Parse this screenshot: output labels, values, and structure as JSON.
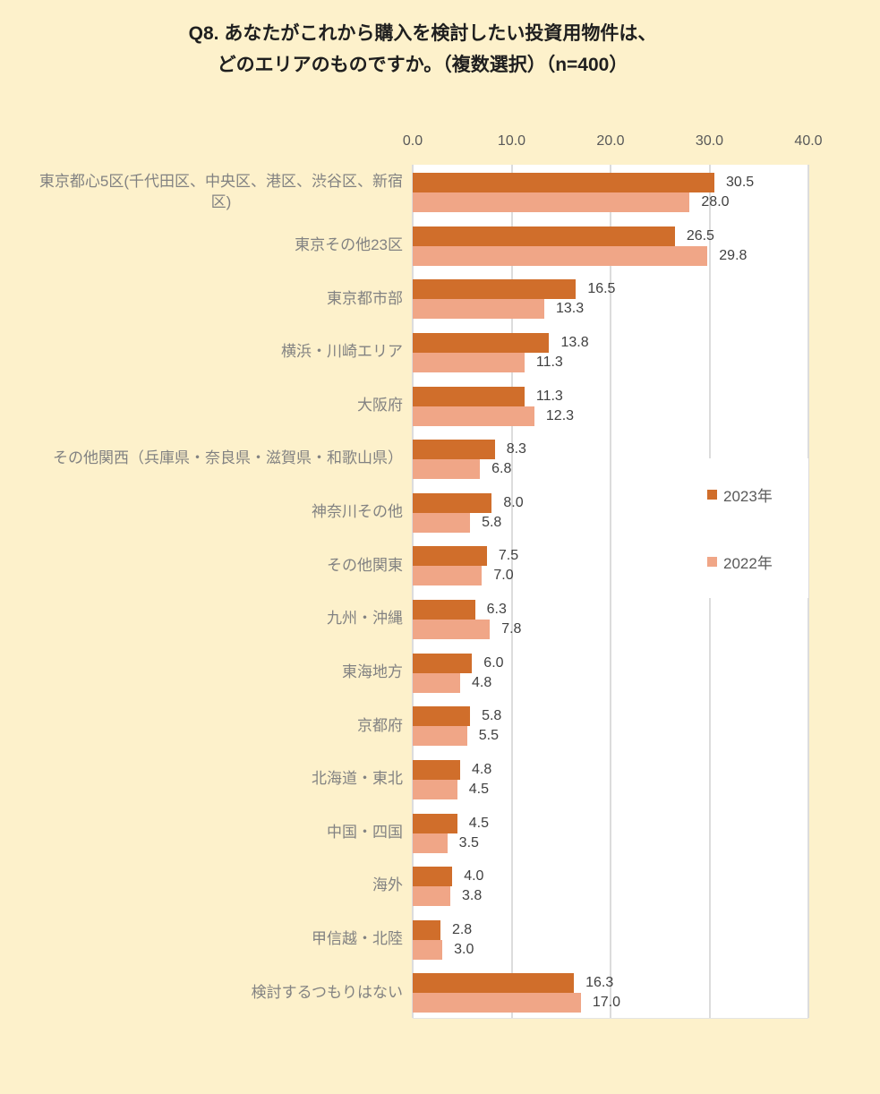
{
  "title": {
    "line1": "Q8. あなたがこれから購入を検討したい投資用物件は、",
    "line2": "どのエリアのものですか。（複数選択）（n=400）"
  },
  "legend": [
    {
      "label": "2023年",
      "color": "#D06E2B"
    },
    {
      "label": "2022年",
      "color": "#F0A687"
    }
  ],
  "colors": {
    "background": "#FDF1CB",
    "plot_background": "#FFFFFF",
    "bar_2023": "#D06E2B",
    "bar_2022": "#F0A687",
    "gridline": "#DCDCDC",
    "category_label": "#828282",
    "value_label": "#404040",
    "axis_label": "#595959"
  },
  "chart_data": {
    "type": "bar",
    "orientation": "horizontal",
    "title": "Q8. あなたがこれから購入を検討したい投資用物件は、どのエリアのものですか。（複数選択）（n=400）",
    "categories": [
      "東京都心5区(千代田区、中央区、港区、渋谷区、新宿\n区)",
      "東京その他23区",
      "東京都市部",
      "横浜・川崎エリア",
      "大阪府",
      "その他関西（兵庫県・奈良県・滋賀県・和歌山県）",
      "神奈川その他",
      "その他関東",
      "九州・沖縄",
      "東海地方",
      "京都府",
      "北海道・東北",
      "中国・四国",
      "海外",
      "甲信越・北陸",
      "検討するつもりはない"
    ],
    "series": [
      {
        "name": "2023年",
        "values": [
          30.5,
          26.5,
          16.5,
          13.8,
          11.3,
          8.3,
          8.0,
          7.5,
          6.3,
          6.0,
          5.8,
          4.8,
          4.5,
          4.0,
          2.8,
          16.3
        ]
      },
      {
        "name": "2022年",
        "values": [
          28.0,
          29.8,
          13.3,
          11.3,
          12.3,
          6.8,
          5.8,
          7.0,
          7.8,
          4.8,
          5.5,
          4.5,
          3.5,
          3.8,
          3.0,
          17.0
        ]
      }
    ],
    "xlim": [
      0,
      40
    ],
    "xticks": [
      "0.0",
      "10.0",
      "20.0",
      "30.0",
      "40.0"
    ],
    "grid": true,
    "value_labels": true,
    "legend_position": "right-middle"
  }
}
